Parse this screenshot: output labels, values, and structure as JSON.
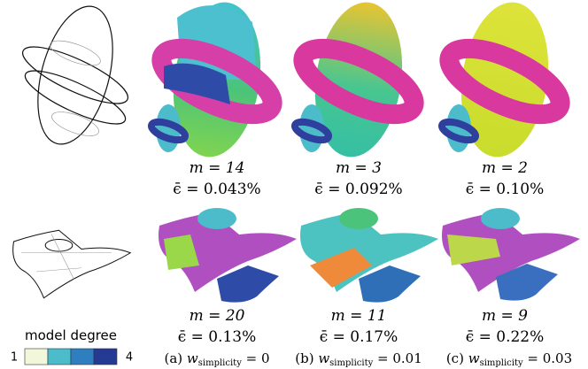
{
  "columns": [
    {
      "top": {
        "m": "m = 14",
        "error": "ϵ̄ = 0.043%"
      },
      "bottom": {
        "m": "m = 20",
        "error": "ϵ̄ = 0.13%"
      },
      "caption": {
        "label": "(a)",
        "variable": "w",
        "subscript": "simplicity",
        "value": " = 0"
      }
    },
    {
      "top": {
        "m": "m = 3",
        "error": "ϵ̄ = 0.092%"
      },
      "bottom": {
        "m": "m = 11",
        "error": "ϵ̄ = 0.17%"
      },
      "caption": {
        "label": "(b)",
        "variable": "w",
        "subscript": "simplicity",
        "value": " = 0.01"
      }
    },
    {
      "top": {
        "m": "m = 2",
        "error": "ϵ̄ = 0.10%"
      },
      "bottom": {
        "m": "m = 9",
        "error": "ϵ̄ = 0.22%"
      },
      "caption": {
        "label": "(c)",
        "variable": "w",
        "subscript": "simplicity",
        "value": " = 0.03"
      }
    }
  ],
  "legend": {
    "title": "model degree",
    "min": "1",
    "max": "4",
    "colors": [
      "#f2f7dc",
      "#4cbccb",
      "#2f7fc0",
      "#253a92"
    ]
  }
}
